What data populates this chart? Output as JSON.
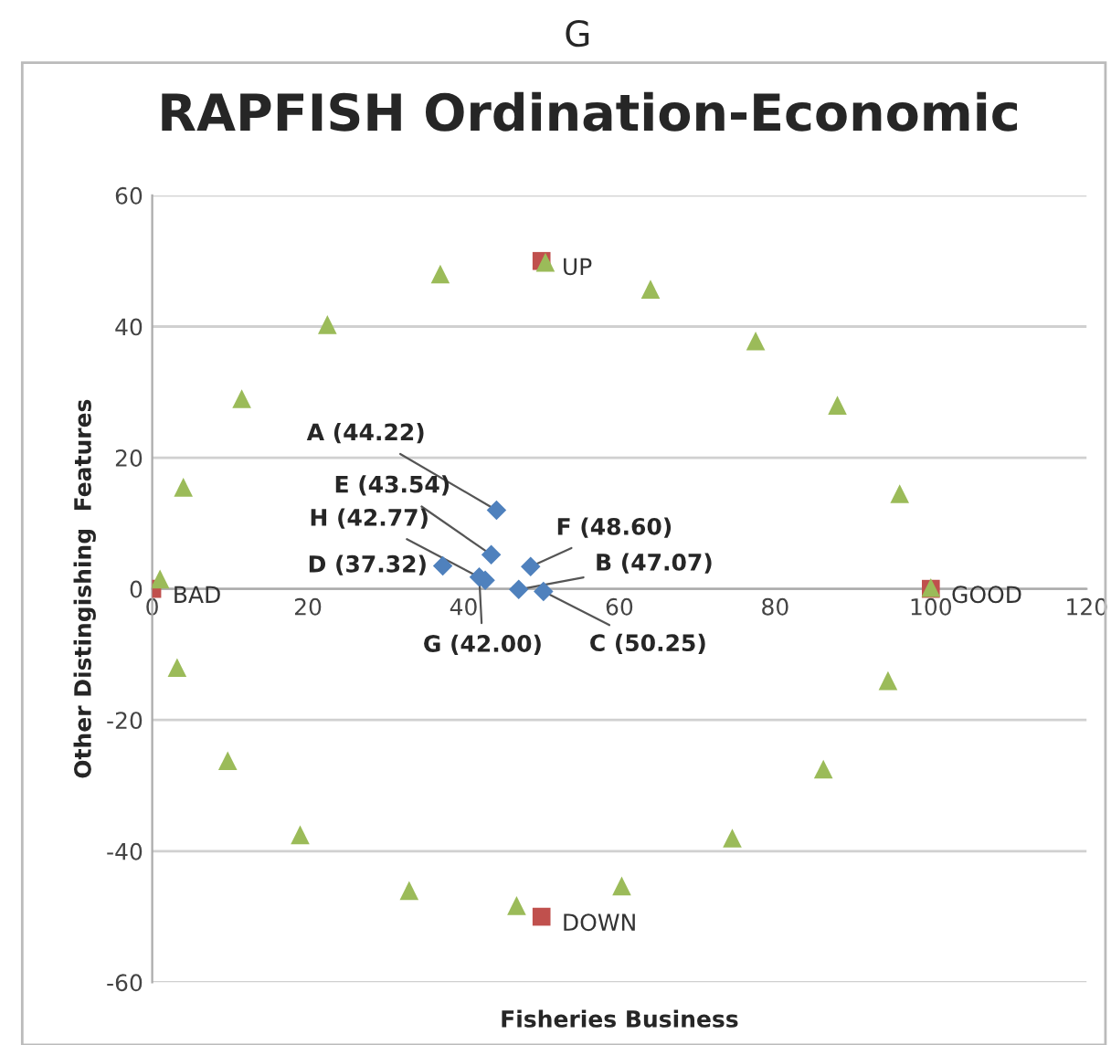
{
  "chart_data": {
    "type": "scatter",
    "title": "RAPFISH Ordination-Economic",
    "xlabel": "Fisheries Business",
    "ylabel": "Other Distingishing  Features",
    "annotations": [
      "G",
      {
        "text": "A (44.22)",
        "x": 44.22,
        "y": 12
      },
      {
        "text": "E (43.54)",
        "x": 43.54,
        "y": 5.2
      },
      {
        "text": "H (42.77)",
        "x": 42.77,
        "y": 1.3
      },
      {
        "text": "D (37.32)",
        "x": 37.32,
        "y": 3.5
      },
      {
        "text": "F (48.60)",
        "x": 48.6,
        "y": 3.4
      },
      {
        "text": "B (47.07)",
        "x": 47.07,
        "y": -0.1
      },
      {
        "text": "G (42.00)",
        "x": 42.0,
        "y": 1.8
      },
      {
        "text": "C (50.25)",
        "x": 50.25,
        "y": -0.4
      },
      {
        "text": "BAD",
        "x": 0,
        "y": 0
      },
      {
        "text": "GOOD",
        "x": 100,
        "y": 0
      },
      {
        "text": "UP",
        "x": 50,
        "y": 50
      },
      {
        "text": "DOWN",
        "x": 50,
        "y": -50
      }
    ],
    "series": [
      {
        "color": "#9bbb59",
        "marker": "triangle",
        "x": [
          1,
          4,
          11.5,
          22.5,
          37,
          50.5,
          64,
          77.5,
          88,
          96,
          100,
          94.5,
          86.2,
          74.5,
          60.3,
          46.8,
          33,
          19,
          9.7,
          3.2
        ],
        "values": [
          1.5,
          15.5,
          29,
          40.3,
          48,
          49.8,
          45.7,
          37.8,
          28,
          14.5,
          0.2,
          -14,
          -27.5,
          -38,
          -45.3,
          -48.3,
          -46,
          -37.5,
          -26.2,
          -12
        ]
      },
      {
        "color": "#c0504d",
        "marker": "square",
        "x": [
          0,
          100,
          50,
          50
        ],
        "values": [
          0,
          0,
          50,
          -50
        ]
      },
      {
        "color": "#4f81bd",
        "marker": "diamond",
        "x": [
          44.22,
          43.54,
          42.77,
          37.32,
          48.6,
          47.07,
          42.0,
          50.25
        ],
        "values": [
          12,
          5.2,
          1.3,
          3.5,
          3.4,
          -0.1,
          1.8,
          -0.4
        ]
      }
    ],
    "xlim": [
      0,
      120
    ],
    "xticks": [
      0,
      20,
      40,
      60,
      80,
      100,
      120
    ],
    "ylim": [
      -60,
      60
    ],
    "yticks": [
      -60,
      -40,
      -20,
      0,
      20,
      40,
      60
    ],
    "grid": "y",
    "legend": false
  }
}
